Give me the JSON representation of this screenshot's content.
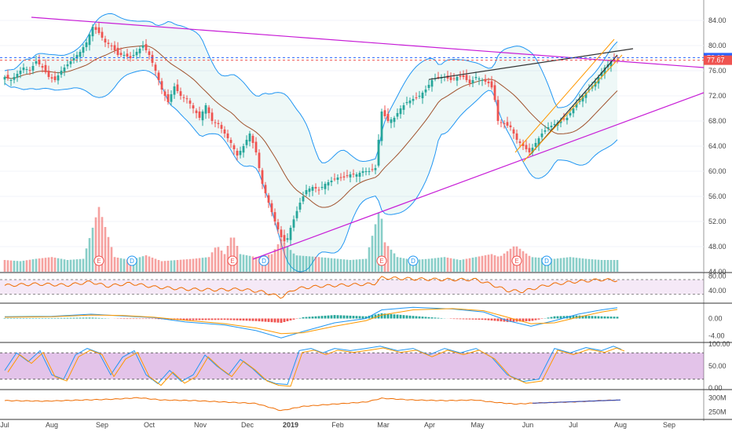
{
  "chart_data": {
    "type": "candlestick",
    "x_labels": [
      "Jul",
      "Aug",
      "Sep",
      "Oct",
      "Nov",
      "Dec",
      "2019",
      "Feb",
      "Mar",
      "Apr",
      "May",
      "Jun",
      "Jul",
      "Aug",
      "Sep"
    ],
    "main": {
      "y_ticks": [
        "84.00",
        "80.00",
        "76.00",
        "72.00",
        "68.00",
        "64.00",
        "60.00",
        "56.00",
        "52.00",
        "48.00",
        "44.00"
      ],
      "ylim": [
        44,
        86
      ],
      "price_tags": [
        {
          "value": 78.08,
          "label": "78.08",
          "color": "#2962ff"
        },
        {
          "value": 77.67,
          "label": "77.67",
          "color": "#ef5350"
        }
      ],
      "close_series": [
        [
          0,
          75
        ],
        [
          8,
          74.5
        ],
        [
          16,
          75.5
        ],
        [
          24,
          76.5
        ],
        [
          32,
          76
        ],
        [
          40,
          77.5
        ],
        [
          48,
          76.5
        ],
        [
          56,
          75
        ],
        [
          64,
          74.5
        ],
        [
          72,
          76
        ],
        [
          80,
          77
        ],
        [
          88,
          78
        ],
        [
          96,
          79
        ],
        [
          104,
          80.5
        ],
        [
          112,
          83
        ],
        [
          120,
          82
        ],
        [
          128,
          80.5
        ],
        [
          136,
          80
        ],
        [
          144,
          78.5
        ],
        [
          152,
          78.5
        ],
        [
          160,
          78
        ],
        [
          168,
          79
        ],
        [
          176,
          80
        ],
        [
          184,
          78.5
        ],
        [
          192,
          76
        ],
        [
          200,
          73
        ],
        [
          208,
          71
        ],
        [
          216,
          73.5
        ],
        [
          224,
          72
        ],
        [
          232,
          71.5
        ],
        [
          240,
          70
        ],
        [
          248,
          68.5
        ],
        [
          256,
          70.5
        ],
        [
          264,
          68
        ],
        [
          272,
          67.5
        ],
        [
          280,
          66
        ],
        [
          288,
          64.5
        ],
        [
          296,
          62.5
        ],
        [
          304,
          64
        ],
        [
          312,
          66
        ],
        [
          320,
          63
        ],
        [
          328,
          58
        ],
        [
          336,
          55
        ],
        [
          344,
          52
        ],
        [
          352,
          49.5
        ],
        [
          358,
          48.5
        ],
        [
          364,
          51
        ],
        [
          370,
          53
        ],
        [
          376,
          55
        ],
        [
          384,
          57
        ],
        [
          392,
          57.5
        ],
        [
          400,
          57
        ],
        [
          408,
          58
        ],
        [
          416,
          58.5
        ],
        [
          424,
          59
        ],
        [
          432,
          59
        ],
        [
          440,
          59.5
        ],
        [
          448,
          59.5
        ],
        [
          456,
          60
        ],
        [
          464,
          60
        ],
        [
          472,
          60.5
        ],
        [
          480,
          69.5
        ],
        [
          488,
          68
        ],
        [
          496,
          68.5
        ],
        [
          504,
          70
        ],
        [
          512,
          71
        ],
        [
          520,
          71.5
        ],
        [
          528,
          72
        ],
        [
          536,
          73
        ],
        [
          544,
          74.5
        ],
        [
          552,
          75
        ],
        [
          560,
          75
        ],
        [
          568,
          74.5
        ],
        [
          576,
          75
        ],
        [
          584,
          75
        ],
        [
          592,
          74
        ],
        [
          600,
          75
        ],
        [
          608,
          74.5
        ],
        [
          616,
          74
        ],
        [
          622,
          73
        ],
        [
          628,
          68
        ],
        [
          636,
          67.5
        ],
        [
          644,
          67
        ],
        [
          652,
          65
        ],
        [
          660,
          64
        ],
        [
          668,
          63
        ],
        [
          676,
          64.5
        ],
        [
          684,
          66
        ],
        [
          692,
          67
        ],
        [
          700,
          67.5
        ],
        [
          708,
          68
        ],
        [
          716,
          68.5
        ],
        [
          724,
          70
        ],
        [
          732,
          71.5
        ],
        [
          740,
          72.5
        ],
        [
          748,
          73.5
        ],
        [
          756,
          75
        ],
        [
          764,
          76.5
        ],
        [
          772,
          77.5
        ],
        [
          780,
          77.7
        ]
      ],
      "volume_series": [
        [
          0,
          2
        ],
        [
          20,
          1.8
        ],
        [
          40,
          2.2
        ],
        [
          60,
          2.5
        ],
        [
          80,
          2
        ],
        [
          100,
          2.2
        ],
        [
          120,
          11
        ],
        [
          140,
          2.5
        ],
        [
          160,
          2
        ],
        [
          180,
          2.8
        ],
        [
          200,
          1.8
        ],
        [
          220,
          2
        ],
        [
          240,
          2.2
        ],
        [
          260,
          2.5
        ],
        [
          270,
          4.5
        ],
        [
          280,
          3
        ],
        [
          290,
          6.5
        ],
        [
          300,
          3
        ],
        [
          320,
          2.5
        ],
        [
          340,
          3
        ],
        [
          352,
          5.5
        ],
        [
          370,
          2.8
        ],
        [
          400,
          2.5
        ],
        [
          440,
          2
        ],
        [
          460,
          2.2
        ],
        [
          478,
          11
        ],
        [
          484,
          5
        ],
        [
          500,
          2.5
        ],
        [
          520,
          2
        ],
        [
          540,
          2.2
        ],
        [
          560,
          2.5
        ],
        [
          580,
          2
        ],
        [
          600,
          2.5
        ],
        [
          620,
          3
        ],
        [
          630,
          2.5
        ],
        [
          650,
          4.5
        ],
        [
          670,
          2.5
        ],
        [
          700,
          2.2
        ],
        [
          720,
          2.5
        ],
        [
          740,
          2.2
        ],
        [
          760,
          2
        ],
        [
          780,
          2
        ]
      ],
      "events": [
        {
          "x": 120,
          "label": "E",
          "kind": "earnings"
        },
        {
          "x": 162,
          "label": "D",
          "kind": "dividend"
        },
        {
          "x": 290,
          "label": "E",
          "kind": "earnings"
        },
        {
          "x": 330,
          "label": "D",
          "kind": "dividend"
        },
        {
          "x": 480,
          "label": "E",
          "kind": "earnings"
        },
        {
          "x": 520,
          "label": "D",
          "kind": "dividend"
        },
        {
          "x": 652,
          "label": "E",
          "kind": "earnings"
        },
        {
          "x": 690,
          "label": "D",
          "kind": "dividend"
        }
      ]
    },
    "rsi": {
      "y_ticks": [
        "80.00",
        "40.00"
      ],
      "ylim": [
        10,
        85
      ],
      "band": [
        30,
        70
      ],
      "series": [
        [
          0,
          54
        ],
        [
          40,
          58
        ],
        [
          80,
          55
        ],
        [
          110,
          64
        ],
        [
          130,
          52
        ],
        [
          160,
          60
        ],
        [
          190,
          50
        ],
        [
          230,
          44
        ],
        [
          270,
          42
        ],
        [
          300,
          44
        ],
        [
          330,
          36
        ],
        [
          352,
          22
        ],
        [
          370,
          45
        ],
        [
          400,
          52
        ],
        [
          440,
          56
        ],
        [
          470,
          58
        ],
        [
          480,
          75
        ],
        [
          520,
          72
        ],
        [
          560,
          70
        ],
        [
          600,
          70
        ],
        [
          622,
          55
        ],
        [
          640,
          40
        ],
        [
          660,
          38
        ],
        [
          690,
          55
        ],
        [
          720,
          63
        ],
        [
          760,
          70
        ],
        [
          780,
          68
        ]
      ]
    },
    "macd": {
      "y_ticks": [
        "0.00",
        "-4.00"
      ],
      "ylim": [
        -5,
        3
      ],
      "macd_line": [
        [
          0,
          0.4
        ],
        [
          60,
          0.5
        ],
        [
          110,
          1
        ],
        [
          150,
          0.6
        ],
        [
          190,
          0.2
        ],
        [
          230,
          -0.8
        ],
        [
          280,
          -1.5
        ],
        [
          320,
          -2.8
        ],
        [
          352,
          -4.5
        ],
        [
          380,
          -3
        ],
        [
          420,
          -1
        ],
        [
          460,
          0
        ],
        [
          480,
          2
        ],
        [
          520,
          2.6
        ],
        [
          570,
          2.2
        ],
        [
          610,
          1.5
        ],
        [
          640,
          -0.5
        ],
        [
          670,
          -1.8
        ],
        [
          700,
          -0.5
        ],
        [
          730,
          1
        ],
        [
          760,
          2
        ],
        [
          780,
          2.5
        ]
      ],
      "signal_line": [
        [
          0,
          0.3
        ],
        [
          60,
          0.4
        ],
        [
          110,
          0.8
        ],
        [
          150,
          0.7
        ],
        [
          190,
          0.3
        ],
        [
          230,
          -0.4
        ],
        [
          280,
          -1.2
        ],
        [
          320,
          -2.2
        ],
        [
          352,
          -3.5
        ],
        [
          380,
          -3.3
        ],
        [
          420,
          -1.8
        ],
        [
          460,
          -0.5
        ],
        [
          480,
          0.8
        ],
        [
          520,
          2
        ],
        [
          570,
          2.3
        ],
        [
          610,
          1.8
        ],
        [
          640,
          0.3
        ],
        [
          670,
          -1.2
        ],
        [
          700,
          -1
        ],
        [
          730,
          0.3
        ],
        [
          760,
          1.5
        ],
        [
          780,
          2.1
        ]
      ]
    },
    "stochastic": {
      "y_ticks": [
        "100.00",
        "50.00",
        "0.00"
      ],
      "ylim": [
        0,
        100
      ],
      "band": [
        20,
        80
      ],
      "series": [
        [
          0,
          40
        ],
        [
          15,
          80
        ],
        [
          30,
          60
        ],
        [
          45,
          85
        ],
        [
          60,
          30
        ],
        [
          75,
          20
        ],
        [
          90,
          75
        ],
        [
          105,
          90
        ],
        [
          120,
          80
        ],
        [
          135,
          30
        ],
        [
          150,
          70
        ],
        [
          165,
          85
        ],
        [
          180,
          30
        ],
        [
          195,
          10
        ],
        [
          210,
          40
        ],
        [
          225,
          15
        ],
        [
          240,
          30
        ],
        [
          255,
          75
        ],
        [
          270,
          50
        ],
        [
          285,
          30
        ],
        [
          300,
          65
        ],
        [
          315,
          45
        ],
        [
          330,
          20
        ],
        [
          345,
          10
        ],
        [
          360,
          8
        ],
        [
          375,
          85
        ],
        [
          390,
          90
        ],
        [
          405,
          80
        ],
        [
          420,
          90
        ],
        [
          440,
          85
        ],
        [
          460,
          90
        ],
        [
          478,
          95
        ],
        [
          500,
          85
        ],
        [
          520,
          90
        ],
        [
          540,
          75
        ],
        [
          560,
          90
        ],
        [
          580,
          80
        ],
        [
          600,
          90
        ],
        [
          620,
          70
        ],
        [
          640,
          30
        ],
        [
          660,
          15
        ],
        [
          680,
          20
        ],
        [
          700,
          90
        ],
        [
          720,
          80
        ],
        [
          740,
          92
        ],
        [
          760,
          85
        ],
        [
          775,
          95
        ],
        [
          785,
          88
        ]
      ]
    },
    "obv": {
      "y_ticks": [
        "300M",
        "250M"
      ],
      "ylim": [
        230,
        320
      ],
      "series": [
        [
          0,
          290
        ],
        [
          50,
          288
        ],
        [
          100,
          292
        ],
        [
          140,
          295
        ],
        [
          170,
          300
        ],
        [
          200,
          292
        ],
        [
          240,
          290
        ],
        [
          280,
          285
        ],
        [
          320,
          280
        ],
        [
          352,
          255
        ],
        [
          380,
          270
        ],
        [
          420,
          278
        ],
        [
          460,
          285
        ],
        [
          480,
          298
        ],
        [
          520,
          292
        ],
        [
          560,
          290
        ],
        [
          600,
          292
        ],
        [
          620,
          285
        ],
        [
          650,
          278
        ],
        [
          680,
          282
        ],
        [
          720,
          285
        ],
        [
          760,
          290
        ],
        [
          780,
          292
        ]
      ]
    }
  }
}
